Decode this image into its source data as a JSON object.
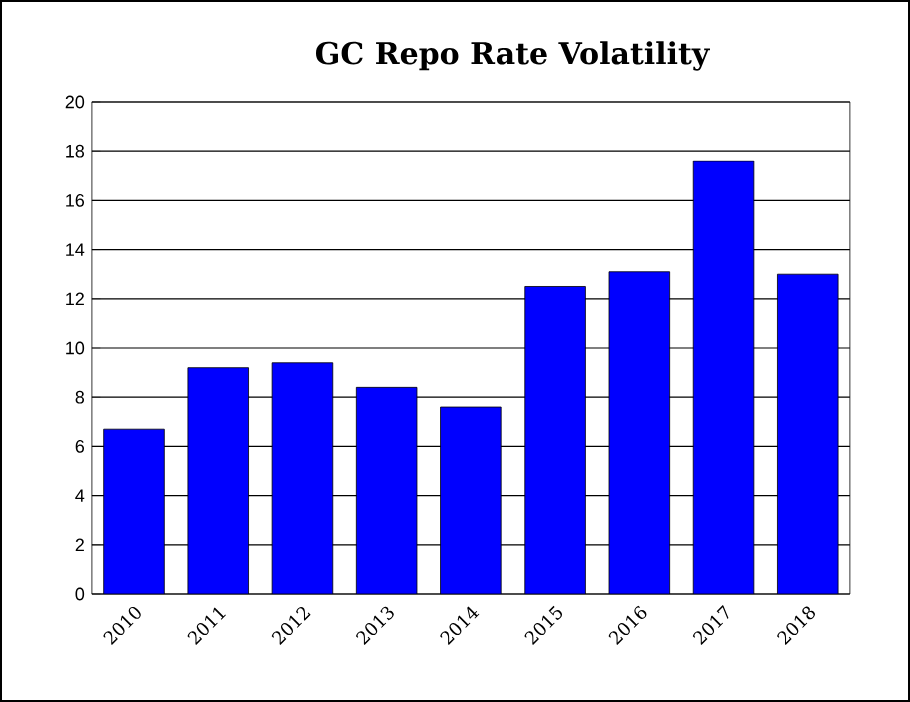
{
  "chart_data": {
    "type": "bar",
    "title": "GC Repo Rate Volatility",
    "categories": [
      "2010",
      "2011",
      "2012",
      "2013",
      "2014",
      "2015",
      "2016",
      "2017",
      "2018"
    ],
    "values": [
      6.7,
      9.2,
      9.4,
      8.4,
      7.6,
      12.5,
      13.1,
      17.6,
      13.0
    ],
    "color": "#0000ff",
    "ylim": [
      0,
      20
    ],
    "yticks": [
      0,
      2,
      4,
      6,
      8,
      10,
      12,
      14,
      16,
      18,
      20
    ],
    "grid": "y"
  }
}
